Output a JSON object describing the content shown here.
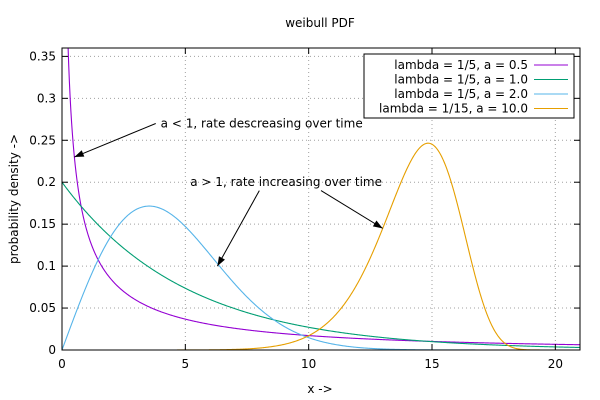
{
  "chart_data": {
    "type": "line",
    "title": "weibull PDF",
    "xlabel": "x ->",
    "ylabel": "probability density ->",
    "xlim": [
      0,
      21
    ],
    "ylim": [
      0,
      0.36
    ],
    "xticks": [
      0,
      5,
      10,
      15,
      20
    ],
    "yticks": [
      0,
      0.05,
      0.1,
      0.15,
      0.2,
      0.25,
      0.3,
      0.35
    ],
    "grid": true,
    "legend_position": "top-right",
    "series": [
      {
        "name": "lambda = 1/5, a = 0.5",
        "lambda": 0.2,
        "a": 0.5,
        "color": "#9400d3"
      },
      {
        "name": "lambda = 1/5, a = 1.0",
        "lambda": 0.2,
        "a": 1.0,
        "color": "#009e73"
      },
      {
        "name": "lambda = 1/5, a = 2.0",
        "lambda": 0.2,
        "a": 2.0,
        "color": "#56b4e9"
      },
      {
        "name": "lambda = 1/15, a = 10.0",
        "lambda": 0.0666667,
        "a": 10.0,
        "color": "#e69f00"
      }
    ],
    "annotations": [
      {
        "text": "a < 1, rate descreasing over time",
        "x": 4,
        "y": 0.27,
        "arrow_from": [
          3.8,
          0.27
        ],
        "arrow_to": [
          0.5,
          0.23
        ]
      },
      {
        "text": "a > 1, rate increasing over time",
        "x": 5.2,
        "y": 0.2,
        "arrow_from": [
          8,
          0.19
        ],
        "arrow_to": [
          6.3,
          0.1
        ],
        "arrow2_from": [
          10.5,
          0.19
        ],
        "arrow2_to": [
          13,
          0.145
        ]
      }
    ]
  }
}
